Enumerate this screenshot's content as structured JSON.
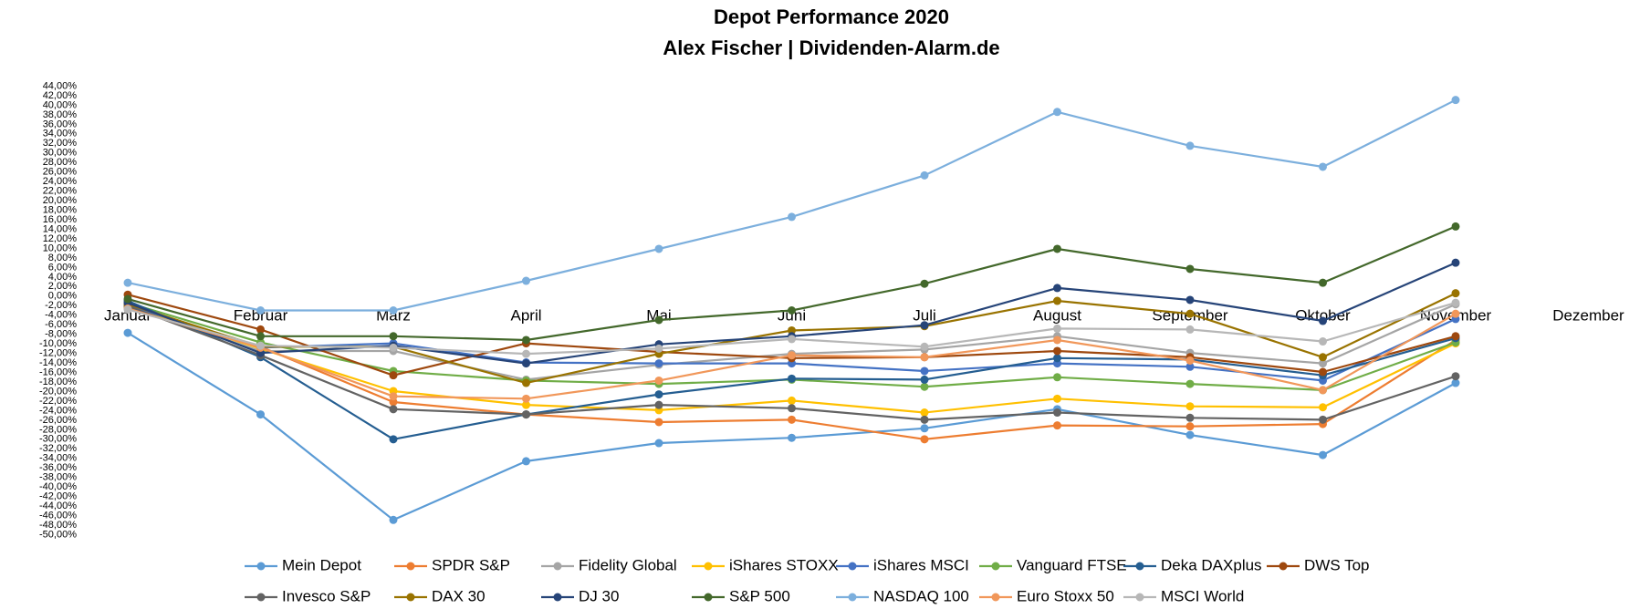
{
  "chart_data": {
    "type": "line",
    "title": "Depot Performance 2020",
    "subtitle": "Alex Fischer | Dividenden-Alarm.de",
    "categories": [
      "Januar",
      "Februar",
      "März",
      "April",
      "Mai",
      "Juni",
      "Juli",
      "August",
      "September",
      "Oktober",
      "November",
      "Dezember"
    ],
    "ylim": [
      -50,
      44
    ],
    "yticks": [
      {
        "value": -50,
        "label": "-50,00%"
      },
      {
        "value": -48,
        "label": "-48,00%"
      },
      {
        "value": -46,
        "label": "-46,00%"
      },
      {
        "value": -44,
        "label": "-44,00%"
      },
      {
        "value": -42,
        "label": "-42,00%"
      },
      {
        "value": -40,
        "label": "-40,00%"
      },
      {
        "value": -38,
        "label": "-38,00%"
      },
      {
        "value": -36,
        "label": "-36,00%"
      },
      {
        "value": -34,
        "label": "-34,00%"
      },
      {
        "value": -32,
        "label": "-32,00%"
      },
      {
        "value": -30,
        "label": "-30,00%"
      },
      {
        "value": -28,
        "label": "-28,00%"
      },
      {
        "value": -26,
        "label": "-26,00%"
      },
      {
        "value": -24,
        "label": "-24,00%"
      },
      {
        "value": -22,
        "label": "-22,00%"
      },
      {
        "value": -20,
        "label": "-20,00%"
      },
      {
        "value": -18,
        "label": "-18,00%"
      },
      {
        "value": -16,
        "label": "-16,00%"
      },
      {
        "value": -14,
        "label": "-14,00%"
      },
      {
        "value": -12,
        "label": "-12,00%"
      },
      {
        "value": -10,
        "label": "-10,00%"
      },
      {
        "value": -8,
        "label": "-8,00%"
      },
      {
        "value": -6,
        "label": "-6,00%"
      },
      {
        "value": -4,
        "label": "-4,00%"
      },
      {
        "value": -2,
        "label": "-2,00%"
      },
      {
        "value": 0,
        "label": "0,00%"
      },
      {
        "value": 2,
        "label": "2,00%"
      },
      {
        "value": 4,
        "label": "4,00%"
      },
      {
        "value": 6,
        "label": "6,00%"
      },
      {
        "value": 8,
        "label": "8,00%"
      },
      {
        "value": 10,
        "label": "10,00%"
      },
      {
        "value": 12,
        "label": "12,00%"
      },
      {
        "value": 14,
        "label": "14,00%"
      },
      {
        "value": 16,
        "label": "16,00%"
      },
      {
        "value": 18,
        "label": "18,00%"
      },
      {
        "value": 20,
        "label": "20,00%"
      },
      {
        "value": 22,
        "label": "22,00%"
      },
      {
        "value": 24,
        "label": "24,00%"
      },
      {
        "value": 26,
        "label": "26,00%"
      },
      {
        "value": 28,
        "label": "28,00%"
      },
      {
        "value": 30,
        "label": "30,00%"
      },
      {
        "value": 32,
        "label": "32,00%"
      },
      {
        "value": 34,
        "label": "34,00%"
      },
      {
        "value": 36,
        "label": "36,00%"
      },
      {
        "value": 38,
        "label": "38,00%"
      },
      {
        "value": 40,
        "label": "40,00%"
      },
      {
        "value": 42,
        "label": "42,00%"
      },
      {
        "value": 44,
        "label": "44,00%"
      }
    ],
    "series": [
      {
        "name": "Mein Depot",
        "color": "#5b9bd5",
        "values": [
          -7.7,
          -24.8,
          -46.9,
          -34.6,
          -30.8,
          -29.7,
          -27.7,
          -23.7,
          -29.1,
          -33.3,
          -18.2,
          null
        ]
      },
      {
        "name": "SPDR S&P",
        "color": "#ed7d31",
        "values": [
          -2.3,
          -10.6,
          -22.2,
          -24.8,
          -26.4,
          -25.9,
          -30.0,
          -27.1,
          -27.3,
          -26.8,
          -9.2,
          null
        ]
      },
      {
        "name": "Fidelity Global",
        "color": "#a5a5a5",
        "values": [
          -2.3,
          -11.5,
          -11.5,
          -17.5,
          -14.4,
          -12.1,
          -11.2,
          -8.4,
          -11.9,
          -14.1,
          -1.7,
          null
        ]
      },
      {
        "name": "iShares STOXX",
        "color": "#ffc000",
        "values": [
          -2.1,
          -11.0,
          -19.9,
          -22.8,
          -23.9,
          -21.9,
          -24.4,
          -21.5,
          -23.1,
          -23.3,
          -9.9,
          null
        ]
      },
      {
        "name": "iShares MSCI",
        "color": "#4472c4",
        "values": [
          -1.9,
          -10.8,
          -9.9,
          -13.9,
          -14.1,
          -14.1,
          -15.7,
          -14.1,
          -14.8,
          -17.7,
          -4.8,
          null
        ]
      },
      {
        "name": "Vanguard FTSE",
        "color": "#70ad47",
        "values": [
          -1.4,
          -9.7,
          -15.7,
          -17.7,
          -18.4,
          -17.5,
          -19.0,
          -17.0,
          -18.4,
          -19.7,
          -9.7,
          null
        ]
      },
      {
        "name": "Deka DAXplus",
        "color": "#255e91",
        "values": [
          -1.0,
          -12.8,
          -30.0,
          -24.8,
          -20.6,
          -17.3,
          -17.5,
          -13.0,
          -13.3,
          -16.6,
          -8.8,
          null
        ]
      },
      {
        "name": "DWS Top",
        "color": "#9e480e",
        "values": [
          0.3,
          -7.0,
          -16.6,
          -9.9,
          -11.7,
          -13.0,
          -12.8,
          -11.5,
          -12.8,
          -15.9,
          -8.4,
          null
        ]
      },
      {
        "name": "Invesco S&P",
        "color": "#636363",
        "values": [
          -2.1,
          -12.4,
          -23.7,
          -24.8,
          -22.8,
          -23.5,
          -25.9,
          -24.4,
          -25.5,
          -25.9,
          -16.8,
          null
        ]
      },
      {
        "name": "DAX 30",
        "color": "#997300",
        "values": [
          -1.7,
          -10.6,
          -10.6,
          -18.2,
          -12.1,
          -7.2,
          -6.3,
          -1.0,
          -3.7,
          -12.8,
          0.6,
          null
        ]
      },
      {
        "name": "DJ 30",
        "color": "#264478",
        "values": [
          -1.4,
          -11.9,
          -10.4,
          -14.1,
          -10.1,
          -8.4,
          -6.1,
          1.7,
          -0.8,
          -5.2,
          7.0,
          null
        ]
      },
      {
        "name": "S&P 500",
        "color": "#43682b",
        "values": [
          -0.6,
          -8.4,
          -8.4,
          -9.2,
          -5.0,
          -3.0,
          2.6,
          9.9,
          5.7,
          2.8,
          14.6,
          null
        ]
      },
      {
        "name": "NASDAQ 100",
        "color": "#7cafdd",
        "values": [
          2.8,
          -3.0,
          -3.0,
          3.2,
          9.9,
          16.6,
          25.3,
          38.6,
          31.5,
          27.1,
          41.1,
          null
        ]
      },
      {
        "name": "Euro Stoxx 50",
        "color": "#f1975a",
        "values": [
          -2.6,
          -10.8,
          -21.0,
          -21.5,
          -17.7,
          -12.4,
          -12.8,
          -9.2,
          -13.5,
          -19.7,
          -3.7,
          null
        ]
      },
      {
        "name": "MSCI World",
        "color": "#b7b7b7",
        "values": [
          -2.8,
          -10.4,
          -10.8,
          -12.1,
          -11.0,
          -9.0,
          -10.6,
          -6.8,
          -7.0,
          -9.5,
          -1.4,
          null
        ]
      }
    ]
  }
}
